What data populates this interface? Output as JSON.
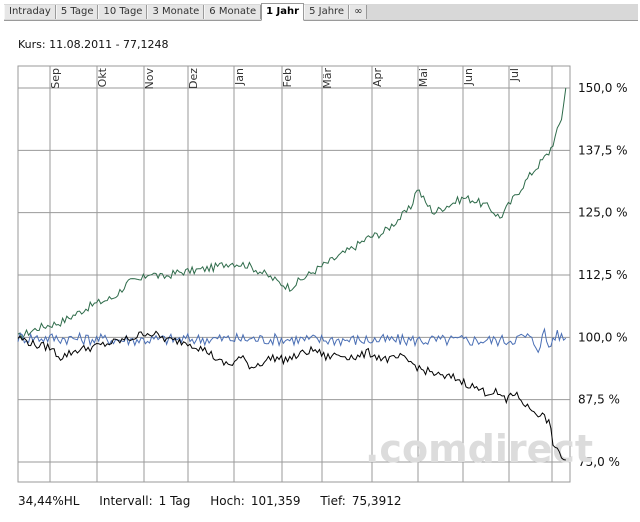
{
  "tabs": [
    {
      "label": "Intraday"
    },
    {
      "label": "5 Tage"
    },
    {
      "label": "10 Tage"
    },
    {
      "label": "3 Monate"
    },
    {
      "label": "6 Monate"
    },
    {
      "label": "1 Jahr"
    },
    {
      "label": "5 Jahre"
    },
    {
      "label": "∞"
    }
  ],
  "active_tab": "1 Jahr",
  "kurs_label": "Kurs: 11.08.2011 - 77,1248",
  "watermark": ".comdirect",
  "footer": {
    "hl": "34,44%HL",
    "intervall_label": "Intervall:",
    "intervall_value": "1 Tag",
    "hoch_label": "Hoch:",
    "hoch_value": "101,359",
    "tief_label": "Tief:",
    "tief_value": "75,3912"
  },
  "colors": {
    "green": "#2e6b4a",
    "blue": "#4a6fb5",
    "black": "#000000",
    "grid": "#9a9a9a"
  },
  "chart_data": {
    "type": "line",
    "y_scale": "percent",
    "ylim": [
      75,
      150
    ],
    "ytick_values": [
      75,
      87.5,
      100,
      112.5,
      125,
      137.5,
      150
    ],
    "ytick_labels": [
      "75,0 %",
      "87,5 %",
      "100,0 %",
      "112,5 %",
      "125,0 %",
      "137,5 %",
      "150,0 %"
    ],
    "month_labels": [
      "Sep",
      "Okt",
      "Nov",
      "Dez",
      "Jan",
      "Feb",
      "Mär",
      "Apr",
      "Mai",
      "Jun",
      "Jul"
    ],
    "x_count": 250,
    "grid": true,
    "series": [
      {
        "key": "green",
        "color": "#2e6b4a",
        "points": [
          [
            0,
            100
          ],
          [
            10,
            102
          ],
          [
            20,
            103
          ],
          [
            35,
            106.5
          ],
          [
            45,
            108
          ],
          [
            52,
            111
          ],
          [
            58,
            111.5
          ],
          [
            62,
            113
          ],
          [
            68,
            112
          ],
          [
            75,
            113
          ],
          [
            85,
            113.5
          ],
          [
            92,
            114
          ],
          [
            100,
            115
          ],
          [
            108,
            114.5
          ],
          [
            115,
            113
          ],
          [
            123,
            111
          ],
          [
            128,
            110
          ],
          [
            135,
            112
          ],
          [
            142,
            114
          ],
          [
            150,
            116
          ],
          [
            158,
            118
          ],
          [
            165,
            120
          ],
          [
            172,
            121
          ],
          [
            180,
            124
          ],
          [
            185,
            126
          ],
          [
            188,
            130
          ],
          [
            192,
            127
          ],
          [
            196,
            125
          ],
          [
            200,
            126
          ],
          [
            205,
            127
          ],
          [
            210,
            128
          ],
          [
            215,
            127.5
          ],
          [
            222,
            126
          ],
          [
            227,
            124
          ],
          [
            232,
            127
          ],
          [
            237,
            130
          ],
          [
            242,
            133
          ],
          [
            246,
            135
          ],
          [
            250,
            137
          ],
          [
            253,
            140
          ],
          [
            256,
            144
          ],
          [
            258,
            150
          ]
        ]
      },
      {
        "key": "blue",
        "color": "#4a6fb5",
        "points": [
          [
            0,
            100
          ],
          [
            50,
            99.5
          ],
          [
            100,
            99.7
          ],
          [
            150,
            99.5
          ],
          [
            200,
            99.4
          ],
          [
            230,
            99.4
          ],
          [
            240,
            100.2
          ],
          [
            245,
            98
          ],
          [
            248,
            101
          ],
          [
            250,
            98
          ],
          [
            253,
            100.5
          ],
          [
            258,
            99.8
          ]
        ]
      },
      {
        "key": "black",
        "color": "#000000",
        "points": [
          [
            0,
            100
          ],
          [
            8,
            98.5
          ],
          [
            15,
            98
          ],
          [
            20,
            96
          ],
          [
            28,
            97.5
          ],
          [
            35,
            98
          ],
          [
            45,
            99
          ],
          [
            55,
            100
          ],
          [
            60,
            101
          ],
          [
            65,
            100.5
          ],
          [
            70,
            99.5
          ],
          [
            80,
            99
          ],
          [
            90,
            97
          ],
          [
            95,
            95
          ],
          [
            100,
            94.5
          ],
          [
            105,
            96
          ],
          [
            110,
            94
          ],
          [
            115,
            95
          ],
          [
            120,
            96
          ],
          [
            125,
            95.5
          ],
          [
            130,
            96
          ],
          [
            135,
            97
          ],
          [
            140,
            97.5
          ],
          [
            145,
            96
          ],
          [
            150,
            96.5
          ],
          [
            160,
            96
          ],
          [
            165,
            97
          ],
          [
            170,
            96
          ],
          [
            175,
            95.5
          ],
          [
            180,
            96
          ],
          [
            185,
            95
          ],
          [
            190,
            93.5
          ],
          [
            195,
            93
          ],
          [
            200,
            92
          ],
          [
            205,
            92
          ],
          [
            210,
            91
          ],
          [
            215,
            90
          ],
          [
            220,
            89
          ],
          [
            225,
            89
          ],
          [
            228,
            88
          ],
          [
            230,
            87
          ],
          [
            232,
            89
          ],
          [
            236,
            88
          ],
          [
            240,
            86
          ],
          [
            244,
            85
          ],
          [
            248,
            84
          ],
          [
            250,
            83
          ],
          [
            252,
            79
          ],
          [
            254,
            77
          ],
          [
            258,
            75.4
          ]
        ]
      }
    ]
  }
}
